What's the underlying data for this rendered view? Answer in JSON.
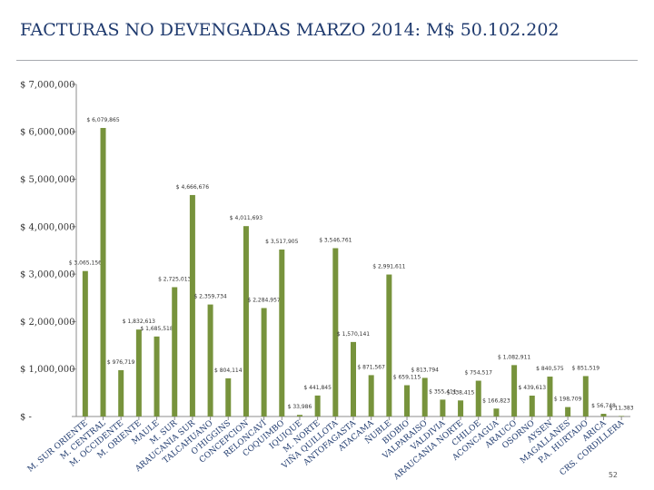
{
  "page": {
    "title": "FACTURAS NO DEVENGADAS MARZO 2014: M$ 50.102.202",
    "page_number": "52"
  },
  "chart_data": {
    "type": "bar",
    "title": "FACTURAS NO DEVENGADAS MARZO 2014: M$ 50.102.202",
    "xlabel": "",
    "ylabel": "",
    "ylim": [
      0,
      7000000
    ],
    "yticks": [
      0,
      1000000,
      2000000,
      3000000,
      4000000,
      5000000,
      6000000,
      7000000
    ],
    "ytick_labels": [
      "$ -",
      "$ 1,000,000",
      "$ 2,000,000",
      "$ 3,000,000",
      "$ 4,000,000",
      "$ 5,000,000",
      "$ 6,000,000",
      "$ 7,000,000"
    ],
    "bar_color": "#77933c",
    "categories": [
      "M. SUR ORIENTE",
      "M. CENTRAL",
      "M. OCCIDENTE",
      "M. ORIENTE",
      "MAULE",
      "M. SUR",
      "ARAUCANIA SUR",
      "TALCAHUANO",
      "O'HIGGINS",
      "CONCEPCION",
      "RELONCAVÍ",
      "COQUIMBO",
      "IQUIQUE",
      "M. NORTE",
      "VIÑA QUILLOTA",
      "ANTOFAGASTA",
      "ATACAMA",
      "ÑUBLE",
      "BIOBIO",
      "VALPARAISO",
      "VALDIVIA",
      "ARAUCANIA NORTE",
      "CHILOE",
      "ACONCAGUA",
      "ARAUCO",
      "OSORNO",
      "AYSEN",
      "MAGALLANES",
      "P.A. HURTADO",
      "ARICA",
      "CRS. CORDILLERA"
    ],
    "values": [
      3065156,
      6079865,
      976719,
      1832613,
      1685518,
      2725013,
      4666676,
      2359734,
      804114,
      4011693,
      2284957,
      3517905,
      33986,
      441845,
      3546761,
      1570141,
      871567,
      2991611,
      659115,
      813794,
      355411,
      338415,
      754517,
      166823,
      1082911,
      439613,
      840575,
      198709,
      851519,
      56748,
      11383
    ],
    "value_labels": [
      "$ 3,065,156",
      "$ 6,079,865",
      "$ 976,719",
      "$ 1,832,613",
      "$ 1,685,518",
      "$ 2,725,013",
      "$ 4,666,676",
      "$ 2,359,734",
      "$ 804,114",
      "$ 4,011,693",
      "$ 2,284,957",
      "$ 3,517,905",
      "$ 33,986",
      "$ 441,845",
      "$ 3,546,761",
      "$ 1,570,141",
      "$ 871,567",
      "$ 2,991,611",
      "$ 659,115",
      "$ 813,794",
      "$ 355,411",
      "$ 338,415",
      "$ 754,517",
      "$ 166,823",
      "$ 1,082,911",
      "$ 439,613",
      "$ 840,575",
      "$ 198,709",
      "$ 851,519",
      "$ 56,748",
      "$ 11,383"
    ],
    "grid": false,
    "legend": "none"
  }
}
